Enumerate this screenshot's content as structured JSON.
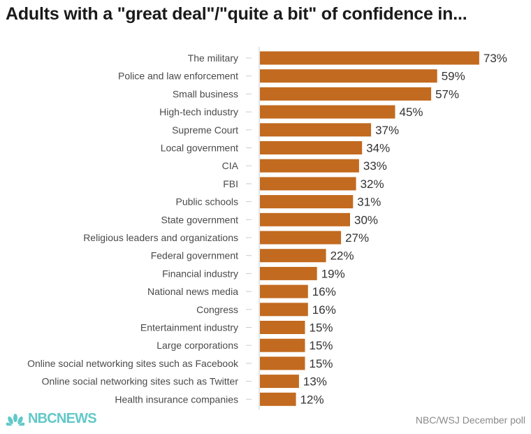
{
  "header": {
    "title": "Adults with a \"great deal\"/\"quite a bit\" of confidence in..."
  },
  "footer": {
    "logo_text": "NBCNEWS",
    "source": "NBC/WSJ December poll"
  },
  "colors": {
    "bar": "#c26a1f",
    "axis": "#cccccc",
    "label": "#4a4a4a",
    "value": "#333333",
    "logo": "#62c8c9"
  },
  "chart_data": {
    "type": "bar",
    "orientation": "horizontal",
    "title": "Adults with a \"great deal\"/\"quite a bit\" of confidence in...",
    "value_suffix": "%",
    "xlim": [
      0,
      100
    ],
    "categories": [
      "The military",
      "Police and law enforcement",
      "Small business",
      "High-tech industry",
      "Supreme Court",
      "Local government",
      "CIA",
      "FBI",
      "Public schools",
      "State government",
      "Religious leaders and organizations",
      "Federal government",
      "Financial industry",
      "National news media",
      "Congress",
      "Entertainment industry",
      "Large corporations",
      "Online social networking sites such as Facebook",
      "Online social networking sites such as Twitter",
      "Health insurance companies"
    ],
    "values": [
      73,
      59,
      57,
      45,
      37,
      34,
      33,
      32,
      31,
      30,
      27,
      22,
      19,
      16,
      16,
      15,
      15,
      15,
      13,
      12
    ],
    "grid": false
  }
}
